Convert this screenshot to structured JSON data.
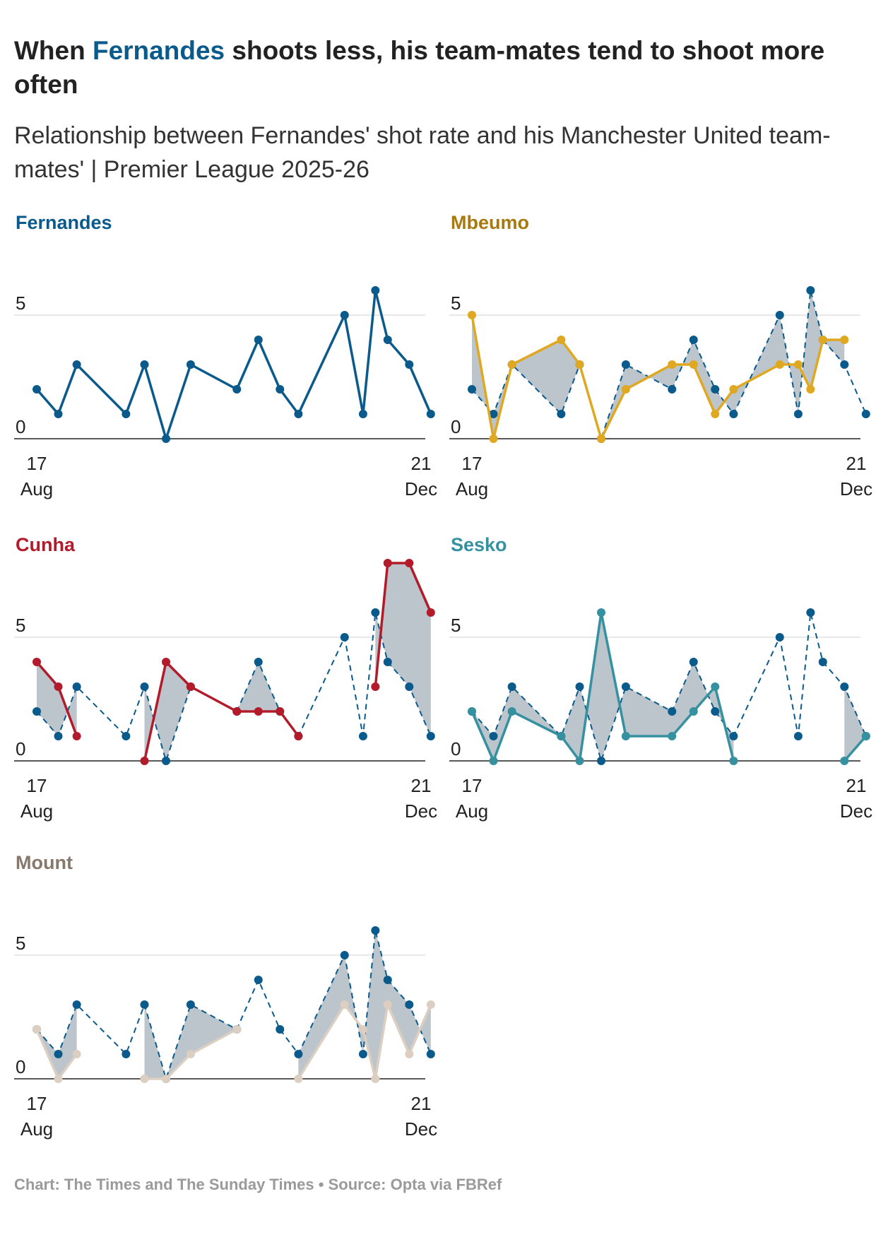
{
  "title": {
    "before": "When ",
    "highlight": "Fernandes",
    "after": " shoots less, his team-mates tend to shoot more often"
  },
  "subtitle": "Relationship between Fernandes' shot rate and his Manchester United team-mates' | Premier League 2025-26",
  "footer": {
    "chart": "Chart: The Times and The Sunday Times",
    "separator": "•",
    "source": "Source: Opta via FBRef"
  },
  "colors": {
    "fernandes": "#0a5a8c",
    "mbeumo": "#e0a820",
    "cunha": "#b31b2a",
    "sesko": "#3591a0",
    "mount": "#dccfc2",
    "shade": "#bcc4cc",
    "gridline": "#e0e0e0",
    "axis": "#222222",
    "title_mbeumo": "#a8790e",
    "title_mount": "#86796c"
  },
  "chart_data": {
    "type": "line",
    "title": "When Fernandes shoots less, his team-mates tend to shoot more often",
    "ylim": [
      0,
      7
    ],
    "yticks": [
      0,
      5
    ],
    "x_domain": [
      0,
      123
    ],
    "x_tick_labels": [
      {
        "x": 0,
        "day": "17",
        "month": "Aug"
      },
      {
        "x": 123,
        "day": "21",
        "month": "Dec"
      }
    ],
    "x_note": "x = days since 17 Aug",
    "fernandes": {
      "name": "Fernandes",
      "x": [
        0,
        7,
        13,
        29,
        35,
        42,
        50,
        65,
        72,
        79,
        85,
        100,
        106,
        110,
        114,
        121,
        128
      ],
      "y": [
        2,
        1,
        3,
        1,
        3,
        0,
        3,
        2,
        4,
        2,
        1,
        5,
        1,
        6,
        4,
        3,
        1
      ]
    },
    "panels": [
      {
        "id": "fernandes",
        "title": "Fernandes",
        "title_color_key": "fernandes",
        "player": null
      },
      {
        "id": "mbeumo",
        "title": "Mbeumo",
        "title_color_key": "title_mbeumo",
        "player": {
          "name": "Mbeumo",
          "color_key": "mbeumo",
          "x": [
            0,
            7,
            13,
            29,
            35,
            42,
            50,
            65,
            72,
            79,
            85,
            100,
            106,
            110,
            114,
            121
          ],
          "y": [
            5,
            0,
            3,
            4,
            3,
            0,
            2,
            3,
            3,
            1,
            2,
            3,
            3,
            2,
            4,
            4
          ]
        }
      },
      {
        "id": "cunha",
        "title": "Cunha",
        "title_color_key": "cunha",
        "player": {
          "name": "Cunha",
          "color_key": "cunha",
          "x": [
            0,
            7,
            13,
            null,
            35,
            42,
            50,
            65,
            72,
            79,
            85,
            null,
            110,
            114,
            121,
            128
          ],
          "y": [
            4,
            3,
            1,
            null,
            0,
            4,
            3,
            2,
            2,
            2,
            1,
            null,
            3,
            8,
            8,
            6
          ]
        }
      },
      {
        "id": "sesko",
        "title": "Sesko",
        "title_color_key": "sesko",
        "player": {
          "name": "Sesko",
          "color_key": "sesko",
          "x": [
            0,
            7,
            13,
            29,
            35,
            42,
            50,
            65,
            72,
            79,
            85,
            null,
            121,
            128
          ],
          "y": [
            2,
            0,
            2,
            1,
            0,
            6,
            1,
            1,
            2,
            3,
            0,
            null,
            0,
            1
          ]
        }
      },
      {
        "id": "mount",
        "title": "Mount",
        "title_color_key": "title_mount",
        "player": {
          "name": "Mount",
          "color_key": "mount",
          "x": [
            0,
            7,
            13,
            null,
            35,
            42,
            50,
            65,
            null,
            85,
            100,
            106,
            110,
            114,
            121,
            128
          ],
          "y": [
            2,
            0,
            1,
            null,
            0,
            0,
            1,
            2,
            null,
            0,
            3,
            2,
            0,
            3,
            1,
            3
          ]
        }
      }
    ]
  }
}
